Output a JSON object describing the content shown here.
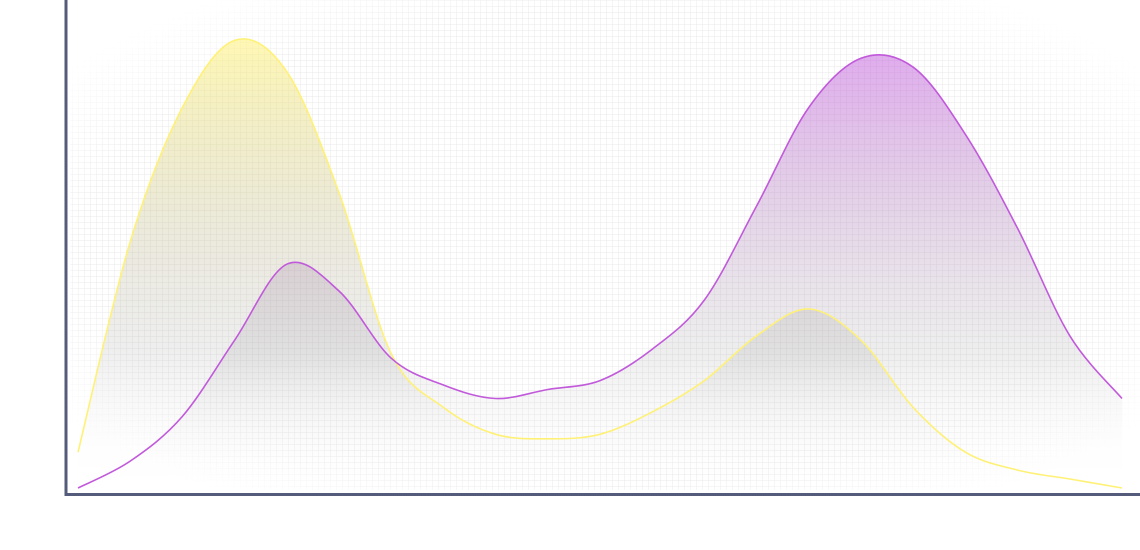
{
  "chart_data": {
    "type": "area",
    "x": [
      0,
      0.05,
      0.1,
      0.15,
      0.2,
      0.25,
      0.3,
      0.35,
      0.4,
      0.45,
      0.5,
      0.55,
      0.6,
      0.65,
      0.7,
      0.75,
      0.8,
      0.85,
      0.9,
      0.95,
      1.0
    ],
    "series": [
      {
        "color": "#fff176",
        "values": [
          0.08,
          0.55,
          0.85,
          1.0,
          0.93,
          0.66,
          0.3,
          0.18,
          0.12,
          0.11,
          0.12,
          0.17,
          0.24,
          0.34,
          0.4,
          0.33,
          0.18,
          0.08,
          0.04,
          0.02,
          0.0
        ]
      },
      {
        "color": "#c159db",
        "values": [
          0.0,
          0.06,
          0.16,
          0.33,
          0.5,
          0.44,
          0.29,
          0.23,
          0.2,
          0.22,
          0.24,
          0.31,
          0.42,
          0.63,
          0.85,
          0.96,
          0.94,
          0.79,
          0.58,
          0.34,
          0.2
        ]
      }
    ],
    "xlim": [
      0,
      1
    ],
    "ylim": [
      0,
      1.05
    ],
    "grid": true,
    "axes": "left-bottom",
    "axis_color": "#555b7a",
    "grid_color": "#e8e8e8"
  }
}
